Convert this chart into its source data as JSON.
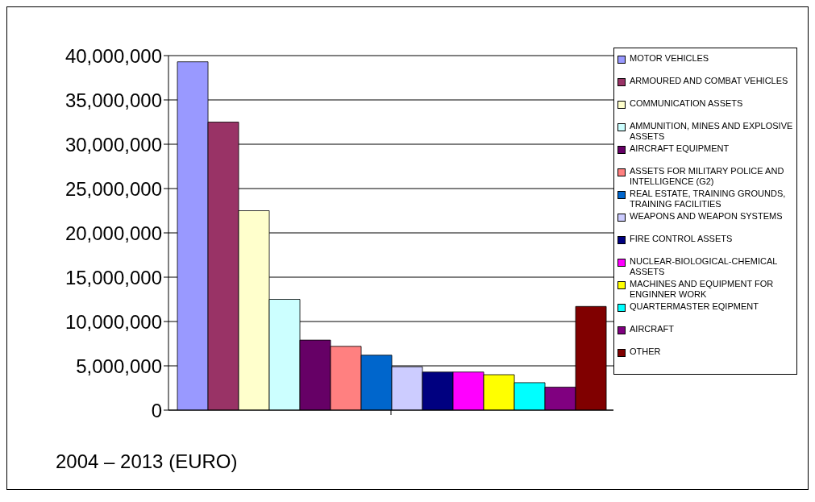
{
  "chart_data": {
    "type": "bar",
    "categories": [
      null
    ],
    "series": [
      {
        "name": "MOTOR VEHICLES",
        "color": "#9999ff",
        "values": [
          39300000
        ]
      },
      {
        "name": "ARMOURED AND COMBAT VEHICLES",
        "color": "#993366",
        "values": [
          32500000
        ]
      },
      {
        "name": "COMMUNICATION ASSETS",
        "color": "#ffffcc",
        "values": [
          22500000
        ]
      },
      {
        "name": "AMMUNITION, MINES AND EXPLOSIVE ASSETS",
        "color": "#ccffff",
        "values": [
          12500000
        ]
      },
      {
        "name": "AIRCRAFT EQUIPMENT",
        "color": "#660066",
        "values": [
          7900000
        ]
      },
      {
        "name": "ASSETS FOR MILITARY POLICE AND INTELLIGENCE (G2)",
        "color": "#ff8080",
        "values": [
          7200000
        ]
      },
      {
        "name": "REAL ESTATE, TRAINING GROUNDS, TRAINING FACILITIES",
        "color": "#0066cc",
        "values": [
          6200000
        ]
      },
      {
        "name": "WEAPONS AND WEAPON SYSTEMS",
        "color": "#ccccff",
        "values": [
          4900000
        ]
      },
      {
        "name": "FIRE CONTROL ASSETS",
        "color": "#000080",
        "values": [
          4300000
        ]
      },
      {
        "name": "NUCLEAR-BIOLOGICAL-CHEMICAL ASSETS",
        "color": "#ff00ff",
        "values": [
          4300000
        ]
      },
      {
        "name": "MACHINES AND EQUIPMENT FOR ENGINNER WORK",
        "color": "#ffff00",
        "values": [
          4000000
        ]
      },
      {
        "name": "QUARTERMASTER EQIPMENT",
        "color": "#00ffff",
        "values": [
          3100000
        ]
      },
      {
        "name": "AIRCRAFT",
        "color": "#800080",
        "values": [
          2600000
        ]
      },
      {
        "name": "OTHER",
        "color": "#800000",
        "values": [
          11700000
        ]
      }
    ],
    "ylim": [
      0,
      40000000
    ],
    "yticks": [
      0,
      {
        "value": 5000000,
        "label": "5,000,000"
      },
      {
        "value": 10000000,
        "label": "10,000,000"
      },
      {
        "value": 15000000,
        "label": "15,000,000"
      },
      {
        "value": 20000000,
        "label": "20,000,000"
      },
      {
        "value": 25000000,
        "label": "25,000,000"
      },
      {
        "value": 30000000,
        "label": "30,000,000"
      },
      {
        "value": 35000000,
        "label": "35,000,000"
      },
      {
        "value": 40000000,
        "label": "40,000,000"
      }
    ],
    "grid": "y",
    "legend": "right",
    "annotations": [
      "2004 – 2013 (EURO)"
    ]
  }
}
